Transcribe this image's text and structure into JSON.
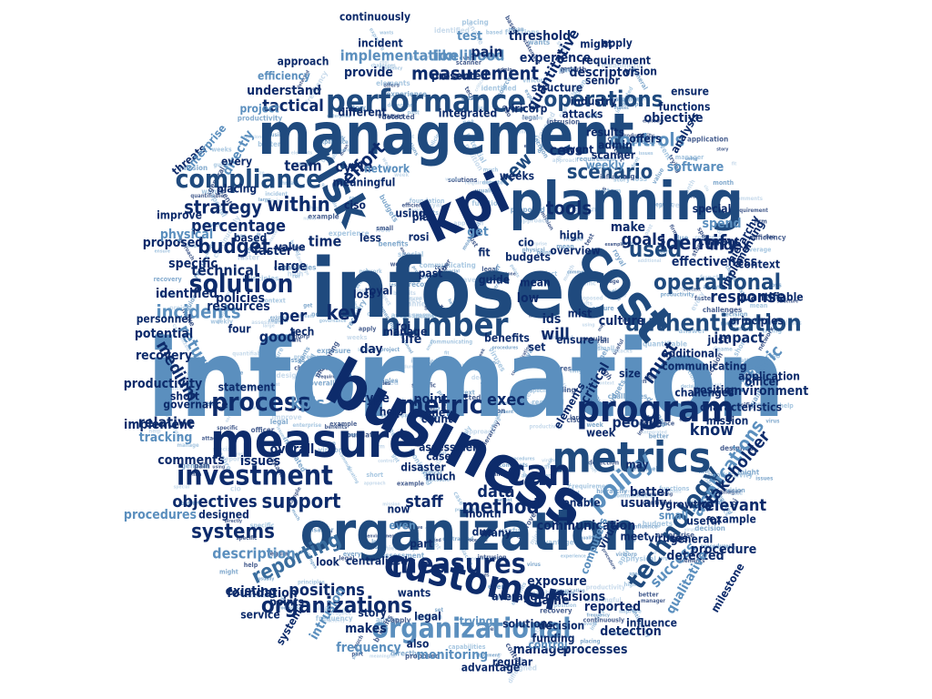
{
  "colors": {
    "navy": "#0d2b6b",
    "dark": "#1f4a7e",
    "mid": "#3a6d9e",
    "steel": "#5b8fbe",
    "light": "#8db6d8",
    "pale": "#b7d0e6"
  },
  "words": [
    {
      "text": "information",
      "color": "steel"
    },
    {
      "text": "infosec",
      "color": "dark"
    },
    {
      "text": "management",
      "color": "dark"
    },
    {
      "text": "business",
      "color": "navy"
    },
    {
      "text": "organization",
      "color": "dark"
    },
    {
      "text": "planning",
      "color": "dark"
    },
    {
      "text": "measure",
      "color": "navy"
    },
    {
      "text": "cost",
      "color": "dark"
    },
    {
      "text": "kpi",
      "color": "navy"
    },
    {
      "text": "metrics",
      "color": "dark"
    },
    {
      "text": "customer",
      "color": "navy"
    },
    {
      "text": "program",
      "color": "navy"
    },
    {
      "text": "performance",
      "color": "dark"
    },
    {
      "text": "risk",
      "color": "dark"
    },
    {
      "text": "can",
      "color": "navy"
    },
    {
      "text": "number",
      "color": "dark"
    },
    {
      "text": "investment",
      "color": "navy"
    },
    {
      "text": "organizational",
      "color": "steel"
    },
    {
      "text": "measures",
      "color": "navy"
    },
    {
      "text": "technology",
      "color": "dark"
    },
    {
      "text": "policy",
      "color": "steel"
    },
    {
      "text": "metric",
      "color": "navy"
    },
    {
      "text": "process",
      "color": "navy"
    },
    {
      "text": "compliance",
      "color": "dark"
    },
    {
      "text": "solution",
      "color": "navy"
    },
    {
      "text": "authentication",
      "color": "dark"
    },
    {
      "text": "operational",
      "color": "dark"
    },
    {
      "text": "operations",
      "color": "dark"
    },
    {
      "text": "measurement",
      "color": "navy"
    },
    {
      "text": "organizations",
      "color": "navy"
    },
    {
      "text": "support",
      "color": "navy"
    },
    {
      "text": "method",
      "color": "navy"
    },
    {
      "text": "used",
      "color": "dark"
    },
    {
      "text": "identify",
      "color": "navy"
    },
    {
      "text": "scenario",
      "color": "dark"
    },
    {
      "text": "within",
      "color": "navy"
    },
    {
      "text": "budget",
      "color": "navy"
    },
    {
      "text": "controls",
      "color": "steel"
    },
    {
      "text": "reporting",
      "color": "mid"
    },
    {
      "text": "systems",
      "color": "navy"
    },
    {
      "text": "applications",
      "color": "steel"
    },
    {
      "text": "incidents",
      "color": "steel"
    },
    {
      "text": "implementation",
      "color": "steel"
    },
    {
      "text": "return",
      "color": "steel"
    },
    {
      "text": "strategy",
      "color": "navy"
    },
    {
      "text": "percentage",
      "color": "navy"
    },
    {
      "text": "tools",
      "color": "navy"
    },
    {
      "text": "key",
      "color": "navy"
    },
    {
      "text": "data",
      "color": "navy"
    },
    {
      "text": "staff",
      "color": "navy"
    },
    {
      "text": "exec",
      "color": "navy"
    },
    {
      "text": "kpis",
      "color": "steel"
    },
    {
      "text": "per",
      "color": "navy"
    },
    {
      "text": "effort",
      "color": "navy"
    },
    {
      "text": "new",
      "color": "dark"
    },
    {
      "text": "objectives",
      "color": "navy"
    },
    {
      "text": "description",
      "color": "steel"
    },
    {
      "text": "positions",
      "color": "navy"
    },
    {
      "text": "technical",
      "color": "navy"
    },
    {
      "text": "medium",
      "color": "navy"
    },
    {
      "text": "must",
      "color": "navy"
    },
    {
      "text": "will",
      "color": "navy"
    },
    {
      "text": "goals",
      "color": "navy"
    },
    {
      "text": "strategic",
      "color": "steel"
    },
    {
      "text": "success",
      "color": "steel"
    },
    {
      "text": "relevant",
      "color": "navy"
    },
    {
      "text": "stakeholder",
      "color": "navy"
    },
    {
      "text": "response",
      "color": "navy"
    },
    {
      "text": "impact",
      "color": "navy"
    },
    {
      "text": "people",
      "color": "navy"
    },
    {
      "text": "know",
      "color": "navy"
    },
    {
      "text": "time",
      "color": "navy"
    },
    {
      "text": "team",
      "color": "navy"
    },
    {
      "text": "cycle",
      "color": "navy"
    },
    {
      "text": "tactical",
      "color": "navy"
    },
    {
      "text": "understand",
      "color": "navy"
    },
    {
      "text": "provide",
      "color": "navy"
    },
    {
      "text": "threshold",
      "color": "navy"
    },
    {
      "text": "likelihood",
      "color": "steel"
    },
    {
      "text": "quantitative",
      "color": "navy"
    },
    {
      "text": "descriptor",
      "color": "navy"
    },
    {
      "text": "objective",
      "color": "navy"
    },
    {
      "text": "ceos",
      "color": "navy"
    },
    {
      "text": "software",
      "color": "steel"
    },
    {
      "text": "spend",
      "color": "steel"
    },
    {
      "text": "index",
      "color": "navy"
    },
    {
      "text": "effectiveness",
      "color": "navy"
    },
    {
      "text": "culture",
      "color": "navy"
    },
    {
      "text": "ids",
      "color": "navy"
    },
    {
      "text": "mist",
      "color": "navy"
    },
    {
      "text": "low",
      "color": "navy"
    },
    {
      "text": "life",
      "color": "navy"
    },
    {
      "text": "day",
      "color": "navy"
    },
    {
      "text": "good",
      "color": "navy"
    },
    {
      "text": "point",
      "color": "navy"
    },
    {
      "text": "type",
      "color": "navy"
    },
    {
      "text": "count",
      "color": "navy"
    },
    {
      "text": "relative",
      "color": "navy"
    },
    {
      "text": "implement",
      "color": "navy"
    },
    {
      "text": "tracking",
      "color": "steel"
    },
    {
      "text": "comments",
      "color": "navy"
    },
    {
      "text": "issues",
      "color": "navy"
    },
    {
      "text": "overall",
      "color": "navy"
    },
    {
      "text": "procedures",
      "color": "steel"
    },
    {
      "text": "existing",
      "color": "navy"
    },
    {
      "text": "foundation",
      "color": "navy"
    },
    {
      "text": "makes",
      "color": "navy"
    },
    {
      "text": "frequency",
      "color": "steel"
    },
    {
      "text": "monitoring",
      "color": "steel"
    },
    {
      "text": "manager",
      "color": "navy"
    },
    {
      "text": "processes",
      "color": "navy"
    },
    {
      "text": "detection",
      "color": "navy"
    },
    {
      "text": "reported",
      "color": "navy"
    },
    {
      "text": "decisions",
      "color": "navy"
    },
    {
      "text": "name",
      "color": "navy"
    },
    {
      "text": "exposure",
      "color": "navy"
    },
    {
      "text": "detected",
      "color": "navy"
    },
    {
      "text": "procedure",
      "color": "navy"
    },
    {
      "text": "environment",
      "color": "navy"
    },
    {
      "text": "better",
      "color": "navy"
    },
    {
      "text": "usually",
      "color": "navy"
    },
    {
      "text": "may",
      "color": "navy"
    },
    {
      "text": "week",
      "color": "navy"
    },
    {
      "text": "critical",
      "color": "navy"
    },
    {
      "text": "make",
      "color": "navy"
    },
    {
      "text": "get",
      "color": "steel"
    },
    {
      "text": "test",
      "color": "steel"
    },
    {
      "text": "pain",
      "color": "navy"
    },
    {
      "text": "potential",
      "color": "navy"
    },
    {
      "text": "recovery",
      "color": "navy"
    },
    {
      "text": "productivity",
      "color": "navy"
    },
    {
      "text": "specific",
      "color": "navy"
    },
    {
      "text": "identified",
      "color": "navy"
    },
    {
      "text": "proposed",
      "color": "navy"
    },
    {
      "text": "physical",
      "color": "steel"
    },
    {
      "text": "large",
      "color": "navy"
    },
    {
      "text": "faster",
      "color": "navy"
    },
    {
      "text": "resources",
      "color": "navy"
    },
    {
      "text": "policies",
      "color": "navy"
    },
    {
      "text": "incident",
      "color": "navy"
    },
    {
      "text": "experience",
      "color": "navy"
    },
    {
      "text": "approach",
      "color": "navy"
    },
    {
      "text": "efficiency",
      "color": "steel"
    },
    {
      "text": "directly",
      "color": "steel"
    },
    {
      "text": "structure",
      "color": "navy"
    },
    {
      "text": "industry",
      "color": "navy"
    },
    {
      "text": "viricorp",
      "color": "navy"
    },
    {
      "text": "different",
      "color": "navy"
    },
    {
      "text": "integrated",
      "color": "navy"
    },
    {
      "text": "centralized",
      "color": "navy"
    },
    {
      "text": "intrusion",
      "color": "steel"
    },
    {
      "text": "average",
      "color": "navy"
    },
    {
      "text": "qualitative",
      "color": "steel"
    },
    {
      "text": "milestone",
      "color": "navy"
    },
    {
      "text": "based",
      "color": "navy"
    },
    {
      "text": "functions",
      "color": "navy"
    },
    {
      "text": "analysis",
      "color": "navy"
    },
    {
      "text": "ciso",
      "color": "navy"
    },
    {
      "text": "less",
      "color": "navy"
    },
    {
      "text": "high",
      "color": "navy"
    },
    {
      "text": "short",
      "color": "navy"
    },
    {
      "text": "four",
      "color": "navy"
    },
    {
      "text": "manage",
      "color": "navy"
    },
    {
      "text": "continuously",
      "color": "navy"
    },
    {
      "text": "application",
      "color": "navy"
    },
    {
      "text": "system",
      "color": "navy"
    },
    {
      "text": "personnel",
      "color": "navy"
    },
    {
      "text": "officer",
      "color": "navy"
    },
    {
      "text": "general",
      "color": "navy"
    },
    {
      "text": "useful",
      "color": "navy"
    },
    {
      "text": "current",
      "color": "navy"
    },
    {
      "text": "ensure",
      "color": "navy"
    },
    {
      "text": "mission",
      "color": "navy"
    },
    {
      "text": "characteristics",
      "color": "navy"
    },
    {
      "text": "communication",
      "color": "navy"
    },
    {
      "text": "computers",
      "color": "steel"
    },
    {
      "text": "enable",
      "color": "navy"
    },
    {
      "text": "trying",
      "color": "steel"
    },
    {
      "text": "story",
      "color": "navy"
    },
    {
      "text": "designed",
      "color": "navy"
    },
    {
      "text": "statement",
      "color": "navy"
    },
    {
      "text": "value",
      "color": "navy"
    },
    {
      "text": "threats",
      "color": "navy"
    },
    {
      "text": "enterprise",
      "color": "steel"
    },
    {
      "text": "project",
      "color": "steel"
    },
    {
      "text": "every",
      "color": "navy"
    },
    {
      "text": "placing",
      "color": "navy"
    },
    {
      "text": "improve",
      "color": "navy"
    },
    {
      "text": "governance",
      "color": "navy"
    },
    {
      "text": "assessment",
      "color": "navy"
    },
    {
      "text": "plan",
      "color": "navy"
    },
    {
      "text": "legal",
      "color": "navy"
    },
    {
      "text": "wants",
      "color": "navy"
    },
    {
      "text": "month",
      "color": "navy"
    },
    {
      "text": "due",
      "color": "navy"
    },
    {
      "text": "part",
      "color": "navy"
    },
    {
      "text": "even",
      "color": "steel"
    },
    {
      "text": "now",
      "color": "navy"
    },
    {
      "text": "many",
      "color": "navy"
    },
    {
      "text": "one",
      "color": "navy"
    },
    {
      "text": "case",
      "color": "navy"
    },
    {
      "text": "much",
      "color": "navy"
    },
    {
      "text": "control",
      "color": "steel"
    },
    {
      "text": "budgets",
      "color": "navy"
    },
    {
      "text": "mean",
      "color": "navy"
    },
    {
      "text": "fit",
      "color": "navy"
    },
    {
      "text": "set",
      "color": "navy"
    },
    {
      "text": "benefits",
      "color": "navy"
    },
    {
      "text": "roi",
      "color": "navy"
    },
    {
      "text": "cio",
      "color": "navy"
    },
    {
      "text": "tech",
      "color": "navy"
    },
    {
      "text": "disaster",
      "color": "navy"
    },
    {
      "text": "elements",
      "color": "navy"
    },
    {
      "text": "size",
      "color": "navy"
    },
    {
      "text": "vision",
      "color": "navy"
    },
    {
      "text": "weekly",
      "color": "steel"
    },
    {
      "text": "scanner",
      "color": "navy"
    },
    {
      "text": "admin",
      "color": "navy"
    },
    {
      "text": "results",
      "color": "navy"
    },
    {
      "text": "event",
      "color": "navy"
    },
    {
      "text": "presented",
      "color": "navy"
    },
    {
      "text": "senior",
      "color": "navy"
    },
    {
      "text": "requirement",
      "color": "navy"
    },
    {
      "text": "might",
      "color": "navy"
    },
    {
      "text": "apply",
      "color": "navy"
    },
    {
      "text": "implementing",
      "color": "navy"
    },
    {
      "text": "challenges",
      "color": "navy"
    },
    {
      "text": "network",
      "color": "steel"
    },
    {
      "text": "meaningful",
      "color": "navy"
    },
    {
      "text": "rosi",
      "color": "navy"
    },
    {
      "text": "using",
      "color": "navy"
    },
    {
      "text": "meet",
      "color": "navy"
    },
    {
      "text": "virus",
      "color": "navy"
    },
    {
      "text": "viruses",
      "color": "navy"
    },
    {
      "text": "small",
      "color": "steel"
    },
    {
      "text": "growth",
      "color": "navy"
    },
    {
      "text": "example",
      "color": "navy"
    },
    {
      "text": "solutions",
      "color": "navy"
    },
    {
      "text": "decision",
      "color": "navy"
    },
    {
      "text": "influence",
      "color": "navy"
    },
    {
      "text": "hierarchy",
      "color": "navy"
    },
    {
      "text": "context",
      "color": "navy"
    },
    {
      "text": "quantifiable",
      "color": "navy"
    },
    {
      "text": "just",
      "color": "navy"
    },
    {
      "text": "overview",
      "color": "navy"
    },
    {
      "text": "royal",
      "color": "navy"
    },
    {
      "text": "loss",
      "color": "navy"
    },
    {
      "text": "past",
      "color": "navy"
    },
    {
      "text": "guide",
      "color": "navy"
    },
    {
      "text": "also",
      "color": "navy"
    },
    {
      "text": "help",
      "color": "navy"
    },
    {
      "text": "look",
      "color": "navy"
    },
    {
      "text": "points",
      "color": "navy"
    },
    {
      "text": "service",
      "color": "navy"
    },
    {
      "text": "regular",
      "color": "navy"
    },
    {
      "text": "advantage",
      "color": "navy"
    },
    {
      "text": "funding",
      "color": "navy"
    },
    {
      "text": "position",
      "color": "navy"
    },
    {
      "text": "additional",
      "color": "navy"
    },
    {
      "text": "communicating",
      "color": "navy"
    },
    {
      "text": "attacks",
      "color": "navy"
    },
    {
      "text": "offers",
      "color": "navy"
    },
    {
      "text": "weeks",
      "color": "navy"
    },
    {
      "text": "ensure",
      "color": "navy"
    },
    {
      "text": "special",
      "color": "navy"
    },
    {
      "text": "principles",
      "color": "navy"
    },
    {
      "text": "answer",
      "color": "navy"
    },
    {
      "text": "firm",
      "color": "navy"
    },
    {
      "text": "capabilities",
      "color": "navy"
    },
    {
      "text": "publications",
      "color": "navy"
    }
  ]
}
